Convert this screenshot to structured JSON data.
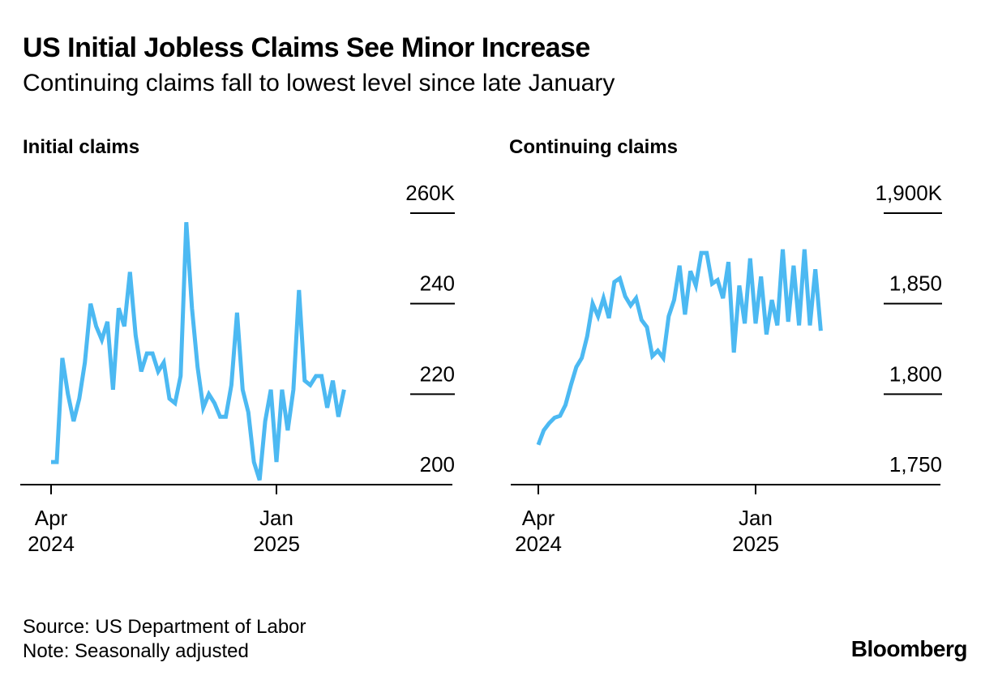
{
  "header": {
    "title": "US Initial Jobless Claims See Minor Increase",
    "subtitle": "Continuing claims fall to lowest level since late January"
  },
  "footer": {
    "source": "Source: US Department of Labor",
    "note": "Note: Seasonally adjusted",
    "brand": "Bloomberg"
  },
  "colors": {
    "line": "#4cb9f2",
    "axis": "#000000",
    "text": "#000000"
  },
  "chart_data": [
    {
      "type": "line",
      "title": "Initial claims",
      "xlabel": "",
      "ylabel": "",
      "units": "K",
      "ylim": [
        200,
        260
      ],
      "yticks": [
        200,
        220,
        240,
        260
      ],
      "ytick_labels": [
        "200",
        "220",
        "240",
        "260K"
      ],
      "xlim": [
        0,
        70
      ],
      "xticks": [
        {
          "x": 0,
          "line1": "Apr",
          "line2": "2024"
        },
        {
          "x": 40,
          "line1": "Jan",
          "line2": "2025"
        }
      ],
      "series": [
        {
          "name": "Initial claims",
          "values": [
            205,
            205,
            228,
            220,
            214,
            219,
            227,
            240,
            235,
            232,
            236,
            221,
            239,
            235,
            247,
            233,
            225,
            229,
            229,
            225,
            227,
            219,
            218,
            224,
            258,
            239,
            226,
            217,
            220,
            218,
            215,
            215,
            222,
            238,
            221,
            216,
            205,
            201,
            214,
            221,
            205,
            221,
            212,
            221,
            243,
            223,
            222,
            224,
            224,
            217,
            223,
            215,
            221
          ]
        }
      ]
    },
    {
      "type": "line",
      "title": "Continuing claims",
      "xlabel": "",
      "ylabel": "",
      "units": "K",
      "ylim": [
        1750,
        1900
      ],
      "yticks": [
        1750,
        1800,
        1850,
        1900
      ],
      "ytick_labels": [
        "1,750",
        "1,800",
        "1,850",
        "1,900K"
      ],
      "xlim": [
        0,
        70
      ],
      "xticks": [
        {
          "x": 0,
          "line1": "Apr",
          "line2": "2024"
        },
        {
          "x": 40,
          "line1": "Jan",
          "line2": "2025"
        }
      ],
      "series": [
        {
          "name": "Continuing claims",
          "values": [
            1772,
            1780,
            1784,
            1787,
            1788,
            1794,
            1805,
            1815,
            1820,
            1832,
            1850,
            1843,
            1853,
            1842,
            1862,
            1864,
            1854,
            1849,
            1853,
            1841,
            1837,
            1821,
            1824,
            1820,
            1843,
            1852,
            1871,
            1844,
            1868,
            1860,
            1878,
            1878,
            1861,
            1863,
            1853,
            1873,
            1823,
            1860,
            1839,
            1875,
            1839,
            1865,
            1833,
            1852,
            1838,
            1880,
            1840,
            1871,
            1838,
            1880,
            1838,
            1869,
            1835
          ]
        }
      ]
    }
  ]
}
